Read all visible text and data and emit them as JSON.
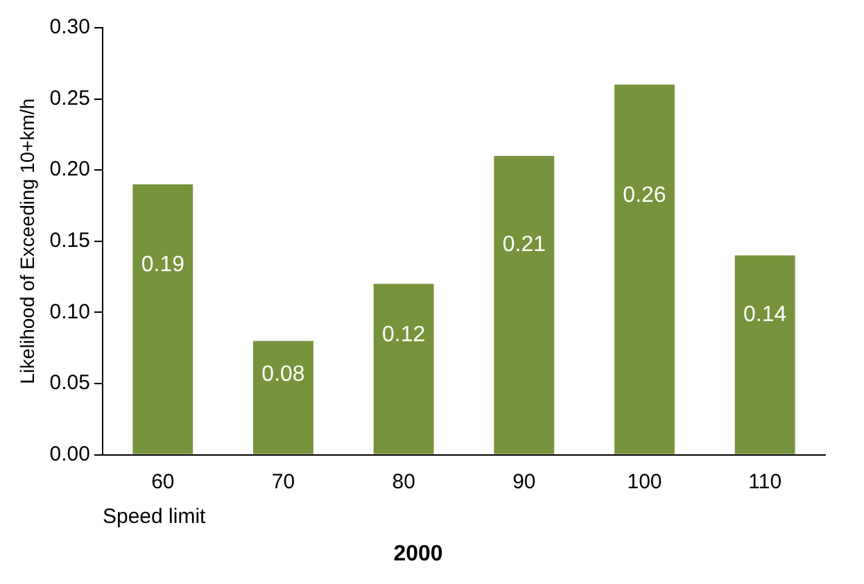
{
  "chart_data": {
    "type": "bar",
    "title": "2000",
    "xlabel": "Speed limit",
    "ylabel": "Likelihood of Exceeding 10+km/h",
    "categories": [
      "60",
      "70",
      "80",
      "90",
      "100",
      "110"
    ],
    "values": [
      0.19,
      0.08,
      0.12,
      0.21,
      0.26,
      0.14
    ],
    "color": "#77933c",
    "data_labels": true,
    "grid": false,
    "legend": false,
    "ylim": [
      0,
      0.3
    ],
    "yticks": [
      {
        "value": 0,
        "label": "0.00"
      },
      {
        "value": 0.05,
        "label": "0.05"
      },
      {
        "value": 0.1,
        "label": "0.10"
      },
      {
        "value": 0.15,
        "label": "0.15"
      },
      {
        "value": 0.2,
        "label": "0.20"
      },
      {
        "value": 0.25,
        "label": "0.25"
      },
      {
        "value": 0.3,
        "label": "0.30"
      }
    ]
  }
}
